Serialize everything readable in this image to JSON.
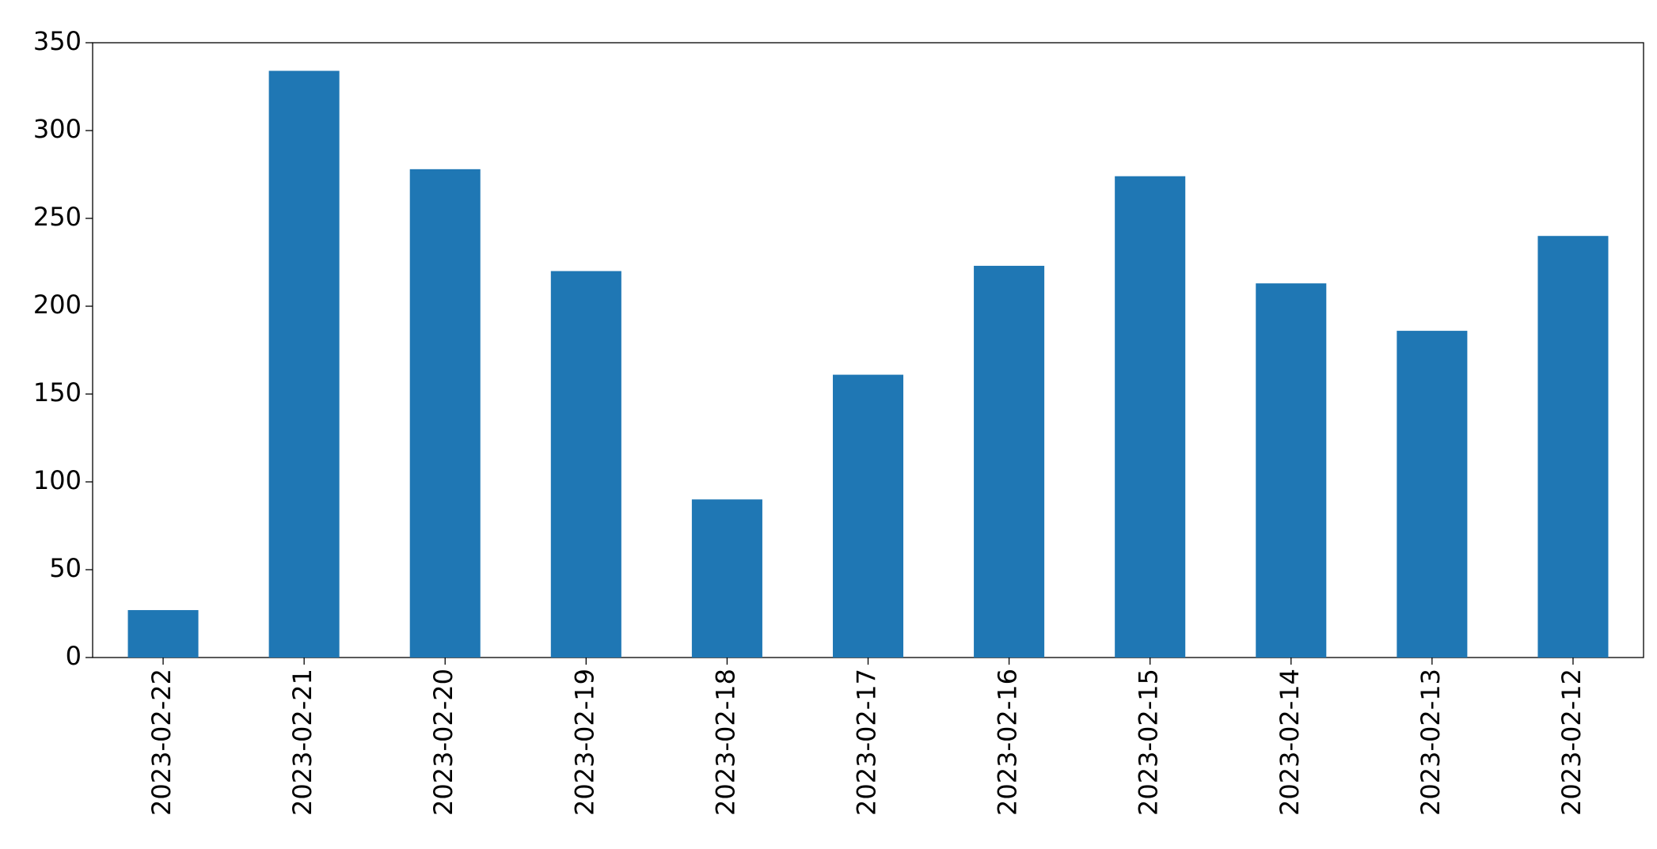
{
  "chart_data": {
    "type": "bar",
    "categories": [
      "2023-02-22",
      "2023-02-21",
      "2023-02-20",
      "2023-02-19",
      "2023-02-18",
      "2023-02-17",
      "2023-02-16",
      "2023-02-15",
      "2023-02-14",
      "2023-02-13",
      "2023-02-12"
    ],
    "values": [
      27,
      334,
      278,
      220,
      90,
      161,
      223,
      274,
      213,
      186,
      240
    ],
    "color": "#1f77b4",
    "ylim": [
      0,
      350
    ],
    "yticks": [
      0,
      50,
      100,
      150,
      200,
      250,
      300,
      350
    ],
    "grid": false
  }
}
